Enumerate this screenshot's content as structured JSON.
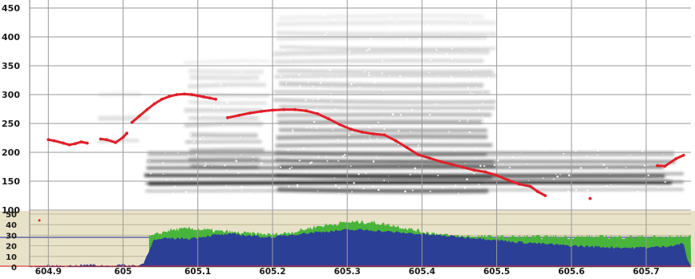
{
  "colors": {
    "background": "#ffffff",
    "grid": "#9a9a9a",
    "pitch": "#e0202a",
    "lower_panel_bg": "#e8e2c8",
    "amplitude": "#2c3f97",
    "energy": "#49b43c",
    "axis_text": "#1a1a1a",
    "spectrogram_dark": "#1c1c1c",
    "spectrogram_light": "#cfcfcf"
  },
  "upper_panel": {
    "kind": "spectrogram-with-pitch-track",
    "y_ticks": [
      "450",
      "400",
      "350",
      "300",
      "250",
      "200",
      "150",
      "100"
    ],
    "y_tick_values": [
      450,
      400,
      350,
      300,
      250,
      200,
      150,
      100
    ]
  },
  "lower_panel": {
    "kind": "amplitude-energy",
    "y_ticks": [
      "50",
      "40",
      "30",
      "20",
      "10",
      "0"
    ],
    "y_tick_values": [
      50,
      40,
      30,
      20,
      10,
      0
    ]
  },
  "x_axis": {
    "ticks": [
      "604.9",
      "605",
      "605.1",
      "605.2",
      "605.3",
      "605.4",
      "605.5",
      "605.6",
      "605.7"
    ],
    "tick_values": [
      604.9,
      605.0,
      605.1,
      605.2,
      605.3,
      605.4,
      605.5,
      605.6,
      605.7
    ]
  },
  "chart_data": {
    "type": "line",
    "x_range": [
      604.875,
      605.76
    ],
    "y_range": [
      100,
      450
    ],
    "grid": true,
    "series": [
      {
        "values_xy": [
          [
            604.9,
            222
          ],
          [
            604.908,
            220
          ],
          [
            604.92,
            216
          ],
          [
            604.928,
            213
          ],
          [
            604.936,
            215
          ],
          [
            604.944,
            218
          ],
          [
            604.952,
            216
          ],
          [
            604.97,
            223
          ],
          [
            604.978,
            222
          ],
          [
            604.99,
            217
          ],
          [
            605.0,
            226
          ],
          [
            605.005,
            233
          ],
          [
            605.012,
            252
          ],
          [
            605.022,
            263
          ],
          [
            605.032,
            274
          ],
          [
            605.042,
            284
          ],
          [
            605.052,
            292
          ],
          [
            605.062,
            297
          ],
          [
            605.072,
            300
          ],
          [
            605.082,
            301
          ],
          [
            605.092,
            300
          ],
          [
            605.1,
            298
          ],
          [
            605.108,
            296
          ],
          [
            605.116,
            294
          ],
          [
            605.124,
            292
          ],
          [
            605.14,
            260
          ],
          [
            605.155,
            264
          ],
          [
            605.17,
            268
          ],
          [
            605.185,
            271
          ],
          [
            605.2,
            273
          ],
          [
            605.215,
            274
          ],
          [
            605.23,
            274
          ],
          [
            605.245,
            272
          ],
          [
            605.26,
            267
          ],
          [
            605.275,
            258
          ],
          [
            605.29,
            248
          ],
          [
            605.305,
            240
          ],
          [
            605.32,
            235
          ],
          [
            605.335,
            232
          ],
          [
            605.35,
            230
          ],
          [
            605.365,
            220
          ],
          [
            605.38,
            208
          ],
          [
            605.395,
            196
          ],
          [
            605.41,
            190
          ],
          [
            605.425,
            184
          ],
          [
            605.44,
            179
          ],
          [
            605.455,
            174
          ],
          [
            605.47,
            169
          ],
          [
            605.485,
            166
          ],
          [
            605.5,
            160
          ],
          [
            605.515,
            152
          ],
          [
            605.53,
            145
          ],
          [
            605.545,
            141
          ],
          [
            605.555,
            132
          ],
          [
            605.565,
            125
          ],
          [
            605.625,
            120
          ],
          [
            605.715,
            177
          ],
          [
            605.725,
            176
          ],
          [
            605.74,
            189
          ],
          [
            605.75,
            195
          ]
        ]
      }
    ],
    "lower_series": [
      {
        "kind": "amplitude",
        "y_range": [
          0,
          50
        ],
        "values_xy": [
          [
            604.875,
            0
          ],
          [
            604.9,
            1
          ],
          [
            604.93,
            1
          ],
          [
            604.955,
            2
          ],
          [
            604.98,
            1
          ],
          [
            605.0,
            2
          ],
          [
            605.02,
            1
          ],
          [
            605.028,
            4
          ],
          [
            605.04,
            25
          ],
          [
            605.06,
            27
          ],
          [
            605.09,
            27
          ],
          [
            605.12,
            30
          ],
          [
            605.15,
            31
          ],
          [
            605.18,
            29
          ],
          [
            605.2,
            28
          ],
          [
            605.23,
            31
          ],
          [
            605.26,
            33
          ],
          [
            605.3,
            35
          ],
          [
            605.33,
            35
          ],
          [
            605.36,
            33
          ],
          [
            605.4,
            31
          ],
          [
            605.44,
            29
          ],
          [
            605.48,
            27
          ],
          [
            605.52,
            24
          ],
          [
            605.56,
            22
          ],
          [
            605.6,
            20
          ],
          [
            605.64,
            19
          ],
          [
            605.68,
            18
          ],
          [
            605.72,
            19
          ],
          [
            605.75,
            22
          ],
          [
            605.755,
            8
          ],
          [
            605.76,
            0
          ]
        ]
      },
      {
        "kind": "energy",
        "y_range": [
          0,
          50
        ],
        "values_xy": [
          [
            605.035,
            28
          ],
          [
            605.06,
            34
          ],
          [
            605.09,
            36
          ],
          [
            605.12,
            34
          ],
          [
            605.15,
            32
          ],
          [
            605.18,
            31
          ],
          [
            605.2,
            30
          ],
          [
            605.23,
            33
          ],
          [
            605.26,
            38
          ],
          [
            605.3,
            42
          ],
          [
            605.33,
            42
          ],
          [
            605.36,
            39
          ],
          [
            605.4,
            33
          ],
          [
            605.44,
            29
          ],
          [
            605.5,
            28
          ],
          [
            605.6,
            28
          ],
          [
            605.7,
            28
          ],
          [
            605.76,
            28
          ]
        ]
      }
    ]
  }
}
